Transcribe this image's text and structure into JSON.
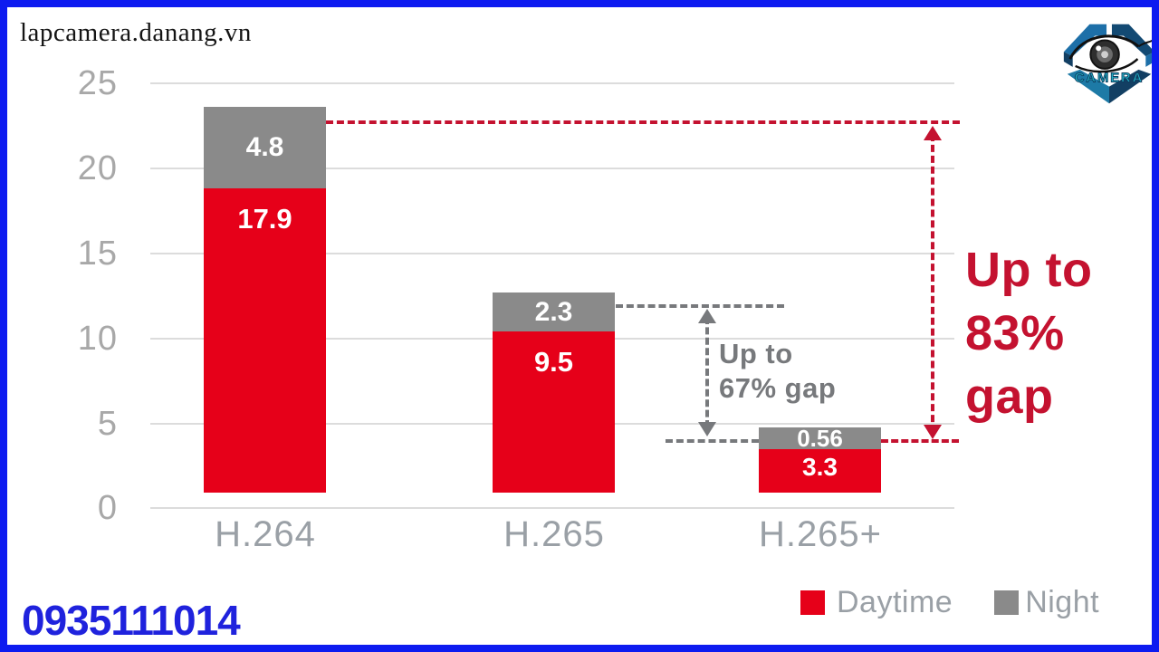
{
  "page": {
    "watermark": "lapcamera.danang.vn",
    "phone": "0935111014"
  },
  "logo": {
    "label": "CAMERA"
  },
  "chart_data": {
    "type": "bar",
    "stacked": true,
    "categories": [
      "H.264",
      "H.265",
      "H.265+"
    ],
    "series": [
      {
        "name": "Daytime",
        "color": "#e60019",
        "values": [
          "17.9",
          "9.5",
          "3.3"
        ]
      },
      {
        "name": "Night",
        "color": "#8a8a8a",
        "values": [
          "4.8",
          "2.3",
          "0.56"
        ]
      }
    ],
    "totals": [
      22.7,
      11.8,
      3.86
    ],
    "yticks": [
      "25",
      "20",
      "15",
      "10",
      "5",
      "0"
    ],
    "ylim": [
      0,
      25
    ],
    "grid": true,
    "legend": [
      {
        "label": "Daytime",
        "color": "#e60019"
      },
      {
        "label": "Night",
        "color": "#8a8a8a"
      }
    ],
    "legend_position": "bottom-right",
    "annotations": [
      {
        "id": "gap67",
        "lines": [
          "Up to",
          "67% gap"
        ],
        "color": "#77797c"
      },
      {
        "id": "gap83",
        "lines": [
          "Up to",
          "83%",
          "gap"
        ],
        "color": "#c41230"
      }
    ]
  }
}
